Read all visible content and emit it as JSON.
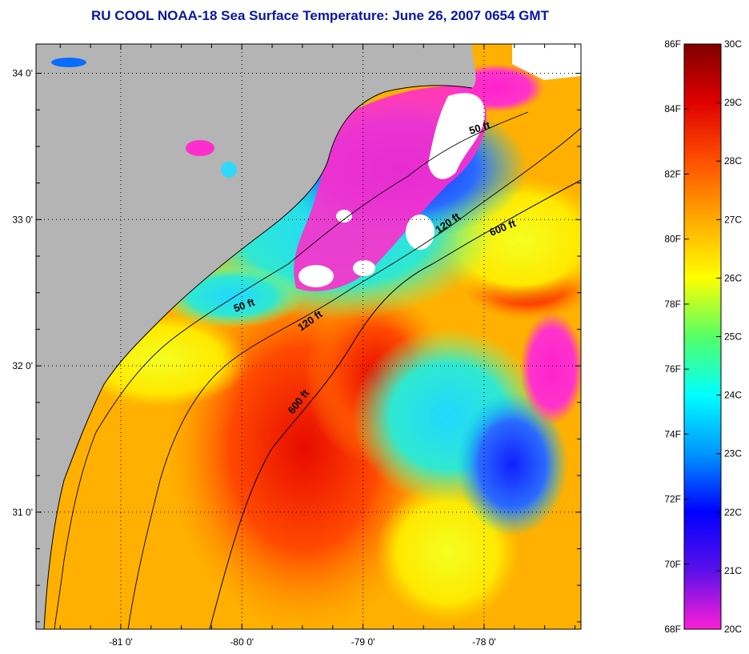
{
  "title": "RU COOL  NOAA-18  Sea Surface Temperature:  June 26, 2007 0654 GMT",
  "map": {
    "lon_min": -81.7,
    "lon_max": -77.2,
    "lat_min": 30.2,
    "lat_max": 34.2,
    "lat_tick_labels": [
      {
        "lat": 34.0,
        "label": "34 0'"
      },
      {
        "lat": 33.0,
        "label": "33 0'"
      },
      {
        "lat": 32.0,
        "label": "32 0'"
      },
      {
        "lat": 31.0,
        "label": "31 0'"
      }
    ],
    "lon_tick_labels": [
      {
        "lon": -81.0,
        "label": "-81 0'"
      },
      {
        "lon": -80.0,
        "label": "-80 0'"
      },
      {
        "lon": -79.0,
        "label": "-79 0'"
      },
      {
        "lon": -78.0,
        "label": "-78 0'"
      }
    ],
    "minor_tick_step_deg": 0.25,
    "land_color": "#b4b4b4",
    "cloud_color": "#ffffff",
    "isobaths": [
      {
        "depth": "50 ft",
        "label": "50 ft"
      },
      {
        "depth": "120 ft",
        "label": "120 ft"
      },
      {
        "depth": "600 ft",
        "label": "600 ft"
      }
    ]
  },
  "colorbar": {
    "fahrenheit_labels": [
      "86F",
      "84F",
      "82F",
      "80F",
      "78F",
      "76F",
      "74F",
      "72F",
      "70F",
      "68F"
    ],
    "celsius_labels": [
      "30C",
      "29C",
      "28C",
      "27C",
      "26C",
      "25C",
      "24C",
      "23C",
      "22C",
      "21C",
      "20C"
    ],
    "c_min": 20,
    "c_max": 30,
    "colors_low_to_high": [
      "#ff1fd6",
      "#5a10e8",
      "#0000ff",
      "#0096ff",
      "#00ffff",
      "#55ff66",
      "#ffff00",
      "#ffaa00",
      "#ff5000",
      "#e00000",
      "#800000"
    ]
  }
}
